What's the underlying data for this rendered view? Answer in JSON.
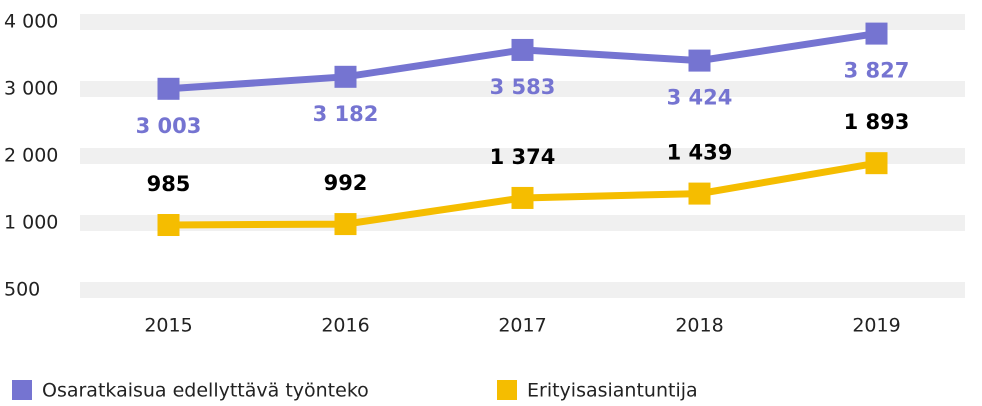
{
  "chart_data": {
    "type": "line",
    "categories": [
      "2015",
      "2016",
      "2017",
      "2018",
      "2019"
    ],
    "series": [
      {
        "name": "Osaratkaisua edellyttävä työnteko",
        "color": "#7574d1",
        "label_color": "#7574d1",
        "label_side": "below",
        "values": [
          3003,
          3182,
          3583,
          3424,
          3827
        ],
        "value_labels": [
          "3 003",
          "3 182",
          "3 583",
          "3 424",
          "3 827"
        ]
      },
      {
        "name": "Erityisasiantuntija",
        "color": "#f5bd00",
        "label_color": "#000000",
        "label_side": "above",
        "values": [
          985,
          992,
          1374,
          1439,
          1893
        ],
        "value_labels": [
          "985",
          "992",
          "1 374",
          "1 439",
          "1 893"
        ]
      }
    ],
    "ylim": [
      500,
      4000
    ],
    "yticks": [
      500,
      {
        "value": 1000,
        "label": "1 000"
      },
      {
        "value": 2000,
        "label": "2 000"
      },
      {
        "value": 3000,
        "label": "3 000"
      },
      {
        "value": 4000,
        "label": "4 000"
      }
    ],
    "grid": true,
    "legend": "bottom"
  }
}
